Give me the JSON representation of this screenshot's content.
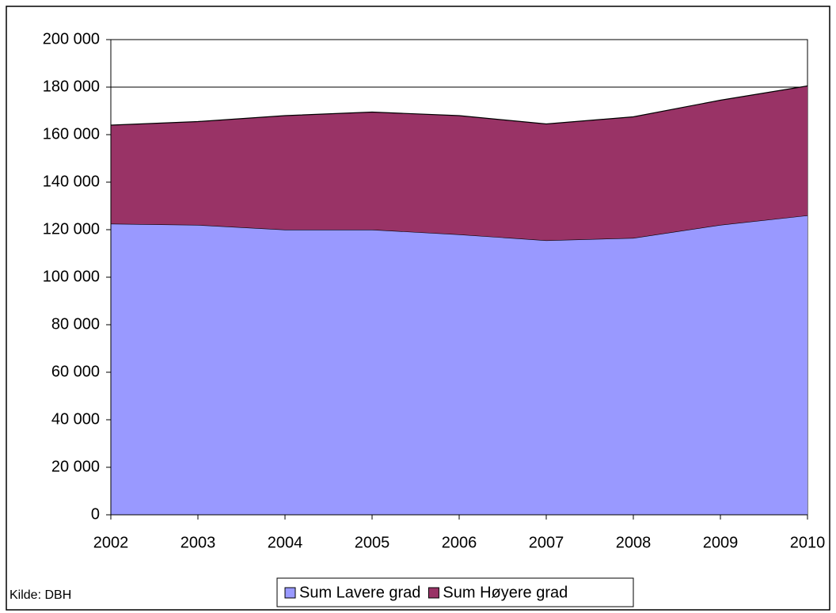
{
  "chart_data": {
    "type": "stacked_area",
    "categories": [
      "2002",
      "2003",
      "2004",
      "2005",
      "2006",
      "2007",
      "2008",
      "2009",
      "2010"
    ],
    "series": [
      {
        "name": "Sum Lavere grad",
        "color": "#9999ff",
        "values": [
          122500,
          122000,
          120000,
          120000,
          118000,
          115500,
          116500,
          122000,
          126000
        ]
      },
      {
        "name": "Sum Høyere grad",
        "color": "#993366",
        "values": [
          41500,
          43500,
          48000,
          49500,
          50000,
          49000,
          51000,
          52500,
          54500
        ]
      }
    ],
    "ylim": [
      0,
      200000
    ],
    "yticks": [
      0,
      {
        "value": 20000,
        "label": "20 000"
      },
      {
        "value": 40000,
        "label": "40 000"
      },
      {
        "value": 60000,
        "label": "60 000"
      },
      {
        "value": 80000,
        "label": "80 000"
      },
      {
        "value": 100000,
        "label": "100 000"
      },
      {
        "value": 120000,
        "label": "120 000"
      },
      {
        "value": 140000,
        "label": "140 000"
      },
      {
        "value": 160000,
        "label": "160 000"
      },
      {
        "value": 180000,
        "label": "180 000"
      },
      {
        "value": 200000,
        "label": "200 000"
      }
    ],
    "grid": true,
    "legend": "bottom",
    "source": "Kilde: DBH"
  }
}
